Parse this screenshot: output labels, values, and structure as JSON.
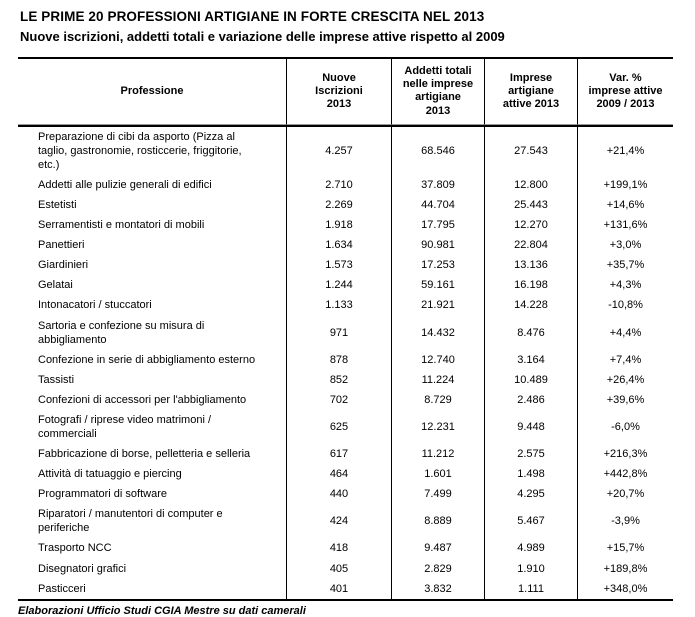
{
  "title": "LE PRIME 20 PROFESSIONI ARTIGIANE IN FORTE CRESCITA NEL 2013",
  "subtitle": "Nuove iscrizioni, addetti totali e variazione delle imprese attive rispetto al 2009",
  "table": {
    "columns": [
      "Professione",
      "Nuove\nIscrizioni\n2013",
      "Addetti totali\nnelle imprese\nartigiane\n2013",
      "Imprese\nartigiane\nattive 2013",
      "Var. %\nimprese attive\n2009 / 2013"
    ],
    "rows": [
      [
        "Preparazione di cibi da asporto (Pizza al\ntaglio, gastronomie, rosticcerie, friggitorie,\netc.)",
        "4.257",
        "68.546",
        "27.543",
        "+21,4%"
      ],
      [
        "Addetti alle pulizie generali di edifici",
        "2.710",
        "37.809",
        "12.800",
        "+199,1%"
      ],
      [
        "Estetisti",
        "2.269",
        "44.704",
        "25.443",
        "+14,6%"
      ],
      [
        "Serramentisti e montatori di mobili",
        "1.918",
        "17.795",
        "12.270",
        "+131,6%"
      ],
      [
        "Panettieri",
        "1.634",
        "90.981",
        "22.804",
        "+3,0%"
      ],
      [
        "Giardinieri",
        "1.573",
        "17.253",
        "13.136",
        "+35,7%"
      ],
      [
        "Gelatai",
        "1.244",
        "59.161",
        "16.198",
        "+4,3%"
      ],
      [
        "Intonacatori / stuccatori",
        "1.133",
        "21.921",
        "14.228",
        "-10,8%"
      ],
      [
        "Sartoria e confezione su misura di\nabbigliamento",
        "971",
        "14.432",
        "8.476",
        "+4,4%"
      ],
      [
        "Confezione in serie di abbigliamento esterno",
        "878",
        "12.740",
        "3.164",
        "+7,4%"
      ],
      [
        "Tassisti",
        "852",
        "11.224",
        "10.489",
        "+26,4%"
      ],
      [
        "Confezioni di accessori per l'abbigliamento",
        "702",
        "8.729",
        "2.486",
        "+39,6%"
      ],
      [
        "Fotografi / riprese video matrimoni /\ncommerciali",
        "625",
        "12.231",
        "9.448",
        "-6,0%"
      ],
      [
        "Fabbricazione di borse, pelletteria e selleria",
        "617",
        "11.212",
        "2.575",
        "+216,3%"
      ],
      [
        "Attività di tatuaggio e piercing",
        "464",
        "1.601",
        "1.498",
        "+442,8%"
      ],
      [
        "Programmatori di software",
        "440",
        "7.499",
        "4.295",
        "+20,7%"
      ],
      [
        "Riparatori / manutentori di computer e\nperiferiche",
        "424",
        "8.889",
        "5.467",
        "-3,9%"
      ],
      [
        "Trasporto NCC",
        "418",
        "9.487",
        "4.989",
        "+15,7%"
      ],
      [
        "Disegnatori grafici",
        "405",
        "2.829",
        "1.910",
        "+189,8%"
      ],
      [
        "Pasticceri",
        "401",
        "3.832",
        "1.111",
        "+348,0%"
      ]
    ]
  },
  "footer": "Elaborazioni Ufficio Studi CGIA Mestre su dati camerali"
}
